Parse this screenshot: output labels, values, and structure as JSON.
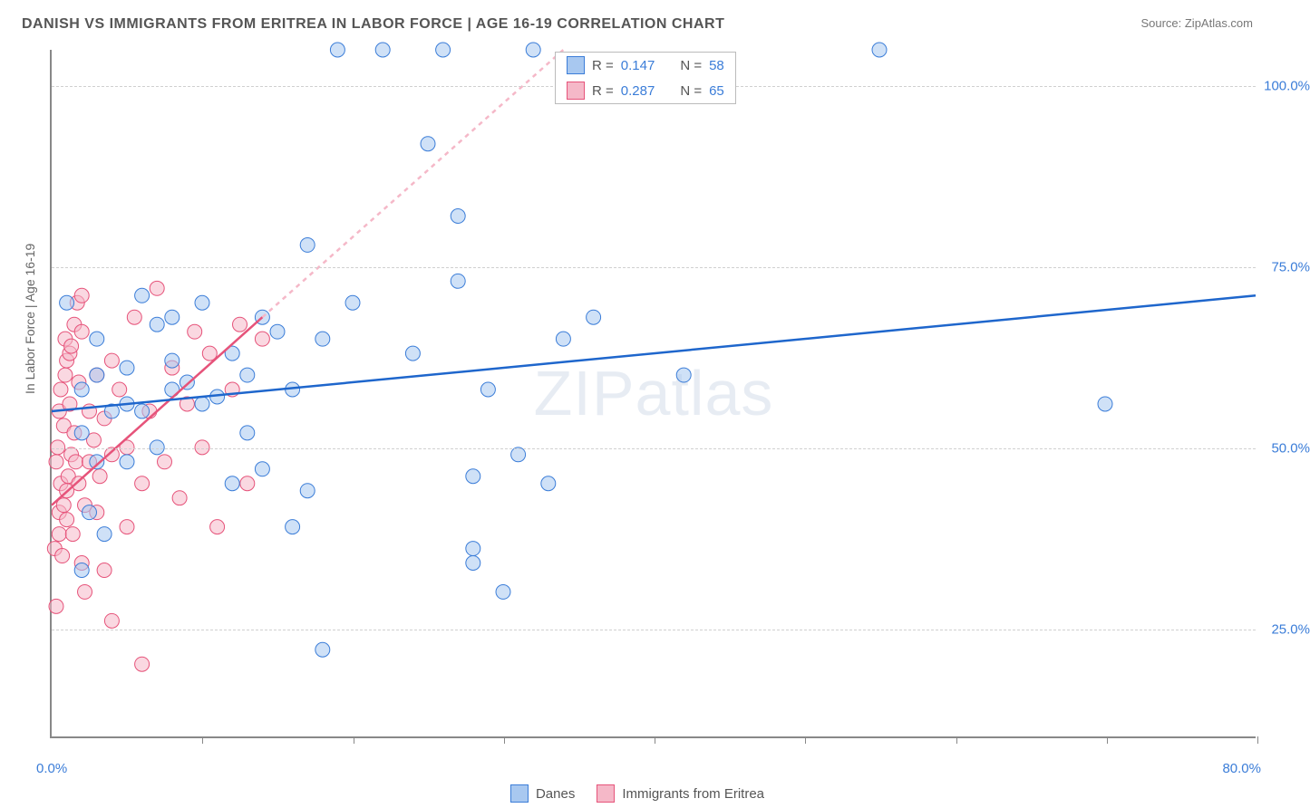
{
  "title": "DANISH VS IMMIGRANTS FROM ERITREA IN LABOR FORCE | AGE 16-19 CORRELATION CHART",
  "source_label": "Source: ",
  "source_value": "ZipAtlas.com",
  "y_axis_label": "In Labor Force | Age 16-19",
  "watermark_a": "ZIP",
  "watermark_b": "atlas",
  "chart": {
    "type": "scatter",
    "background_color": "#ffffff",
    "grid_color": "#d0d0d0",
    "axis_color": "#888888",
    "tick_label_color": "#3b7dd8",
    "xlim": [
      0,
      80
    ],
    "ylim": [
      10,
      105
    ],
    "x_ticks": [
      0,
      10,
      20,
      30,
      40,
      50,
      60,
      70,
      80
    ],
    "y_ticks": [
      25,
      50,
      75,
      100
    ],
    "y_tick_labels": [
      "25.0%",
      "50.0%",
      "75.0%",
      "100.0%"
    ],
    "x_origin_label": "0.0%",
    "x_max_label": "80.0%",
    "point_radius": 8,
    "point_opacity": 0.55,
    "trend_line_width": 2.5,
    "series": [
      {
        "name": "Danes",
        "legend_label": "Danes",
        "fill_color": "#a8c8f0",
        "stroke_color": "#3b7dd8",
        "trend_color": "#1e66cc",
        "trend_dashed_color": "#a8c8f0",
        "R": "0.147",
        "N": "58",
        "trend_solid": {
          "x1": 0,
          "y1": 55,
          "x2": 80,
          "y2": 71
        },
        "points": [
          [
            1,
            70
          ],
          [
            2,
            52
          ],
          [
            2,
            58
          ],
          [
            2,
            33
          ],
          [
            2.5,
            41
          ],
          [
            3,
            60
          ],
          [
            3,
            48
          ],
          [
            3,
            65
          ],
          [
            3.5,
            38
          ],
          [
            4,
            55
          ],
          [
            5,
            61
          ],
          [
            5,
            48
          ],
          [
            5,
            56
          ],
          [
            6,
            71
          ],
          [
            6,
            55
          ],
          [
            7,
            67
          ],
          [
            7,
            50
          ],
          [
            8,
            68
          ],
          [
            8,
            58
          ],
          [
            8,
            62
          ],
          [
            9,
            59
          ],
          [
            10,
            70
          ],
          [
            10,
            56
          ],
          [
            11,
            57
          ],
          [
            12,
            63
          ],
          [
            12,
            45
          ],
          [
            13,
            52
          ],
          [
            13,
            60
          ],
          [
            14,
            68
          ],
          [
            14,
            47
          ],
          [
            15,
            66
          ],
          [
            16,
            39
          ],
          [
            16,
            58
          ],
          [
            17,
            78
          ],
          [
            17,
            44
          ],
          [
            18,
            22
          ],
          [
            18,
            65
          ],
          [
            19,
            105
          ],
          [
            20,
            70
          ],
          [
            22,
            105
          ],
          [
            24,
            63
          ],
          [
            25,
            92
          ],
          [
            26,
            105
          ],
          [
            27,
            82
          ],
          [
            27,
            73
          ],
          [
            28,
            34
          ],
          [
            28,
            36
          ],
          [
            28,
            46
          ],
          [
            29,
            58
          ],
          [
            30,
            30
          ],
          [
            31,
            49
          ],
          [
            32,
            105
          ],
          [
            33,
            45
          ],
          [
            34,
            65
          ],
          [
            36,
            68
          ],
          [
            42,
            60
          ],
          [
            55,
            105
          ],
          [
            70,
            56
          ]
        ]
      },
      {
        "name": "Eritrea",
        "legend_label": "Immigrants from Eritrea",
        "fill_color": "#f5b8c8",
        "stroke_color": "#e6537a",
        "trend_color": "#e6537a",
        "trend_dashed_color": "#f5b8c8",
        "R": "0.287",
        "N": "65",
        "trend_solid": {
          "x1": 0,
          "y1": 42,
          "x2": 14,
          "y2": 68
        },
        "trend_dashed": {
          "x1": 14,
          "y1": 68,
          "x2": 34,
          "y2": 105
        },
        "points": [
          [
            0.2,
            36
          ],
          [
            0.3,
            28
          ],
          [
            0.3,
            48
          ],
          [
            0.4,
            50
          ],
          [
            0.5,
            41
          ],
          [
            0.5,
            55
          ],
          [
            0.5,
            38
          ],
          [
            0.6,
            45
          ],
          [
            0.6,
            58
          ],
          [
            0.7,
            35
          ],
          [
            0.8,
            53
          ],
          [
            0.8,
            42
          ],
          [
            0.9,
            60
          ],
          [
            0.9,
            65
          ],
          [
            1.0,
            40
          ],
          [
            1.0,
            44
          ],
          [
            1.0,
            62
          ],
          [
            1.1,
            46
          ],
          [
            1.2,
            56
          ],
          [
            1.2,
            63
          ],
          [
            1.3,
            64
          ],
          [
            1.3,
            49
          ],
          [
            1.4,
            38
          ],
          [
            1.5,
            52
          ],
          [
            1.5,
            67
          ],
          [
            1.6,
            48
          ],
          [
            1.7,
            70
          ],
          [
            1.8,
            45
          ],
          [
            1.8,
            59
          ],
          [
            2.0,
            34
          ],
          [
            2.0,
            66
          ],
          [
            2.0,
            71
          ],
          [
            2.2,
            42
          ],
          [
            2.2,
            30
          ],
          [
            2.5,
            55
          ],
          [
            2.5,
            48
          ],
          [
            2.8,
            51
          ],
          [
            3.0,
            41
          ],
          [
            3.0,
            60
          ],
          [
            3.2,
            46
          ],
          [
            3.5,
            54
          ],
          [
            3.5,
            33
          ],
          [
            4.0,
            49
          ],
          [
            4.0,
            62
          ],
          [
            4.0,
            26
          ],
          [
            4.5,
            58
          ],
          [
            5.0,
            39
          ],
          [
            5.0,
            50
          ],
          [
            5.5,
            68
          ],
          [
            6.0,
            45
          ],
          [
            6.0,
            20
          ],
          [
            6.5,
            55
          ],
          [
            7.0,
            72
          ],
          [
            7.5,
            48
          ],
          [
            8.0,
            61
          ],
          [
            8.5,
            43
          ],
          [
            9.0,
            56
          ],
          [
            9.5,
            66
          ],
          [
            10.0,
            50
          ],
          [
            10.5,
            63
          ],
          [
            11.0,
            39
          ],
          [
            12.0,
            58
          ],
          [
            12.5,
            67
          ],
          [
            13.0,
            45
          ],
          [
            14.0,
            65
          ]
        ]
      }
    ]
  },
  "legend_top": {
    "R_prefix": "R = ",
    "N_prefix": "N = "
  }
}
